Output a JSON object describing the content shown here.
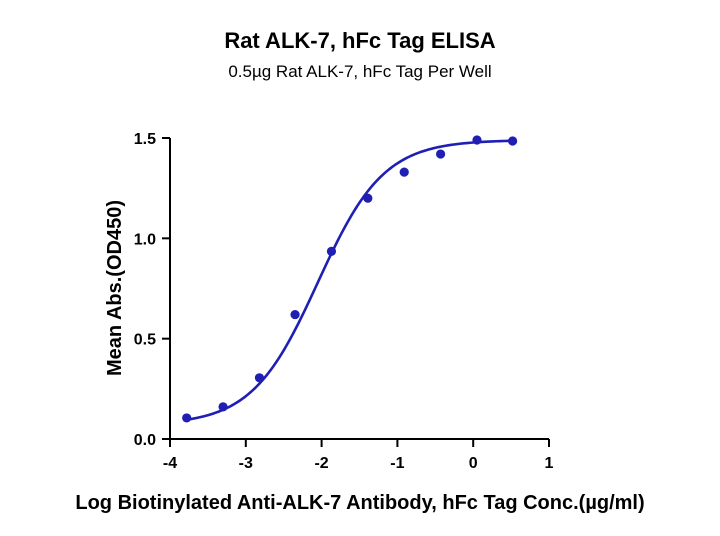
{
  "chart_data": {
    "type": "scatter",
    "title": "Rat ALK-7, hFc Tag ELISA",
    "subtitle": "0.5µg Rat ALK-7, hFc Tag Per Well",
    "xlabel": "Log Biotinylated Anti-ALK-7 Antibody, hFc Tag Conc.(µg/ml)",
    "ylabel": "Mean Abs.(OD450)",
    "xlim": [
      -4,
      1
    ],
    "ylim": [
      0,
      1.5
    ],
    "x_ticks": [
      "-4",
      "-3",
      "-2",
      "-1",
      "0",
      "1"
    ],
    "y_ticks": [
      "0.0",
      "0.5",
      "1.0",
      "1.5"
    ],
    "grid": false,
    "color": "#1f1fb4",
    "points": [
      {
        "x": -3.78,
        "y": 0.105
      },
      {
        "x": -3.3,
        "y": 0.16
      },
      {
        "x": -2.82,
        "y": 0.305
      },
      {
        "x": -2.35,
        "y": 0.62
      },
      {
        "x": -1.87,
        "y": 0.935
      },
      {
        "x": -1.39,
        "y": 1.2
      },
      {
        "x": -0.91,
        "y": 1.33
      },
      {
        "x": -0.43,
        "y": 1.42
      },
      {
        "x": 0.05,
        "y": 1.49
      },
      {
        "x": 0.52,
        "y": 1.485
      }
    ],
    "fit": {
      "model": "4PL",
      "bottom": 0.07,
      "top": 1.49,
      "log_ec50": -2.05,
      "hill": 1.0,
      "x_range": [
        -3.78,
        0.52
      ]
    }
  }
}
